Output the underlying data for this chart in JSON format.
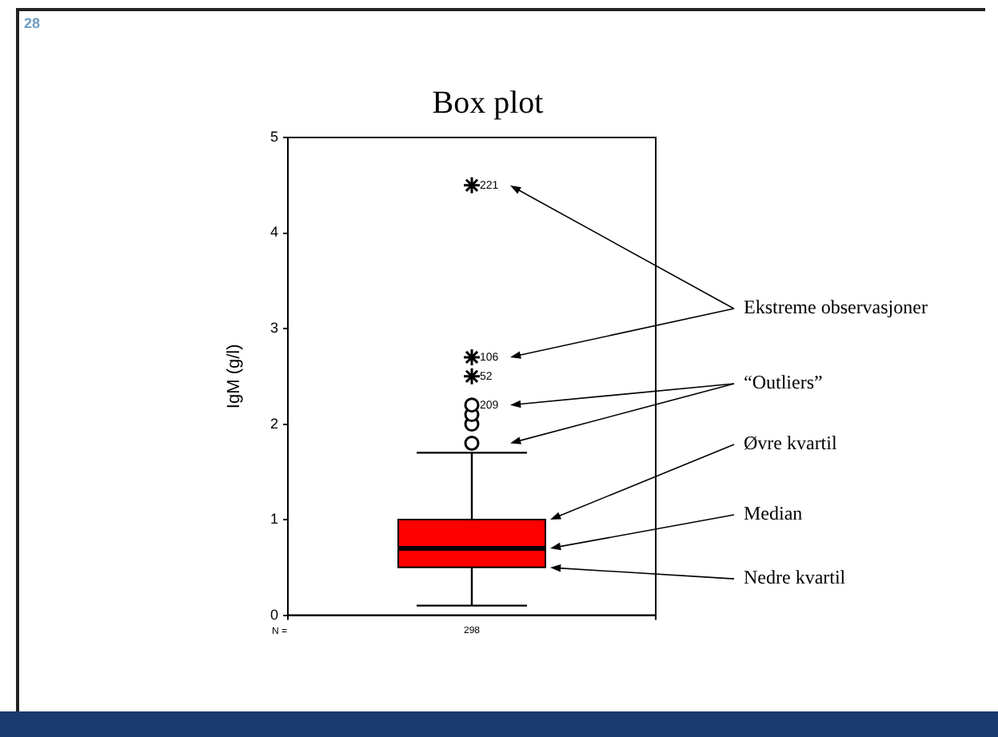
{
  "chart_data": {
    "type": "box",
    "title": "Box plot",
    "ylabel": "IgM (g/l)",
    "categories": [
      "298"
    ],
    "ylim": [
      0,
      5
    ],
    "yticks": [
      0,
      1,
      2,
      3,
      4,
      5
    ],
    "grid": false,
    "legend": false,
    "series": [
      {
        "color": "#ff0000",
        "boxes": [
          {
            "low": 0.1,
            "q1": 0.5,
            "median": 0.7,
            "q3": 1.0,
            "high": 1.7,
            "outliers": [
              1.8,
              2.0,
              2.1,
              2.2
            ]
          }
        ]
      },
      {
        "type": "scatter",
        "marker": "cross",
        "color": "#000000",
        "x": [
          "298",
          "298",
          "298"
        ],
        "values": [
          4.5,
          2.7,
          2.5
        ]
      }
    ],
    "annotations": [
      "28",
      "N =",
      "Ekstreme observasjoner",
      "“Outliers”",
      "209",
      "Øvre kvartil",
      "Median",
      "Nedre kvartil",
      {
        "text": "221",
        "x": "298",
        "y": 4.5
      },
      {
        "text": "106",
        "x": "298",
        "y": 2.7
      },
      {
        "text": "52",
        "x": "298",
        "y": 2.5
      }
    ]
  }
}
